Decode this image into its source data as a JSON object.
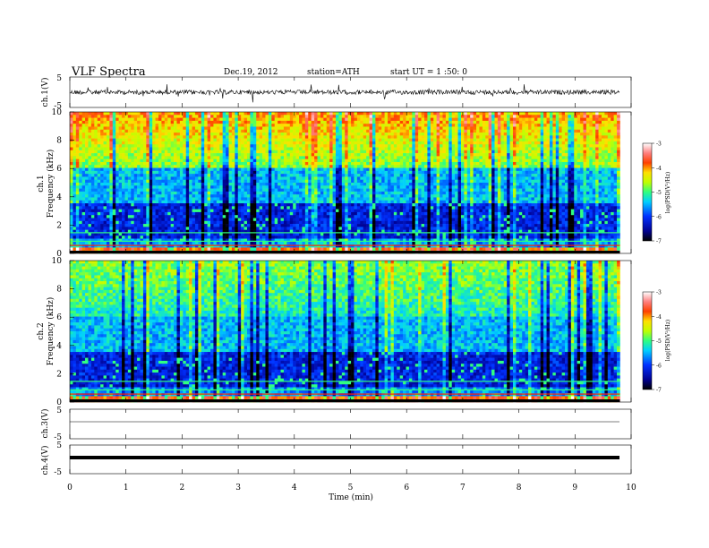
{
  "header": {
    "title": "VLF Spectra",
    "date": "Dec.19, 2012",
    "station": "station=ATH",
    "start": "start UT =  1 :50: 0"
  },
  "chart_data": [
    {
      "type": "line",
      "id": "ch1",
      "ylabel": "ch.1(V)",
      "ylim": [
        -5,
        5
      ],
      "yticks": [
        "5",
        "-5"
      ],
      "xlim": [
        0,
        10
      ],
      "description_series": [
        {
          "x_start": 0,
          "x_end": 9.8,
          "mean": 0,
          "amplitude": 1.2
        }
      ]
    },
    {
      "type": "heatmap",
      "id": "ch1-spec",
      "ylabel": "Frequency (kHz)",
      "channel_label": "ch.1",
      "yticks": [
        "0",
        "2",
        "4",
        "6",
        "8",
        "10"
      ],
      "ylim": [
        0,
        10
      ],
      "xlim": [
        0,
        10
      ],
      "data_end": 9.8,
      "colorbar": {
        "label": "log(PSD(V²/Hz)",
        "ticks": [
          "-3",
          "-4",
          "-5",
          "-6",
          "-7"
        ],
        "range": [
          -7,
          -3
        ]
      }
    },
    {
      "type": "heatmap",
      "id": "ch2-spec",
      "ylabel": "Frequency (kHz)",
      "channel_label": "ch.2",
      "yticks": [
        "0",
        "2",
        "4",
        "6",
        "8",
        "10"
      ],
      "ylim": [
        0,
        10
      ],
      "xlim": [
        0,
        10
      ],
      "data_end": 9.8,
      "colorbar": {
        "label": "log(PSD(V²/Hz)",
        "ticks": [
          "-3",
          "-4",
          "-5",
          "-6",
          "-7"
        ],
        "range": [
          -7,
          -3
        ]
      }
    },
    {
      "type": "line",
      "id": "ch3",
      "ylabel": "ch.3(V)",
      "ylim": [
        -5,
        5
      ],
      "yticks": [
        "5",
        "-5"
      ],
      "xlim": [
        0,
        10
      ],
      "level": 0
    },
    {
      "type": "line",
      "id": "ch4",
      "ylabel": "ch.4(V)",
      "ylim": [
        -5,
        5
      ],
      "yticks": [
        "5",
        "-5"
      ],
      "xlim": [
        0,
        10
      ],
      "level": 0
    }
  ],
  "xaxis": {
    "label": "Time (min)",
    "ticks": [
      "0",
      "1",
      "2",
      "3",
      "4",
      "5",
      "6",
      "7",
      "8",
      "9",
      "10"
    ]
  }
}
